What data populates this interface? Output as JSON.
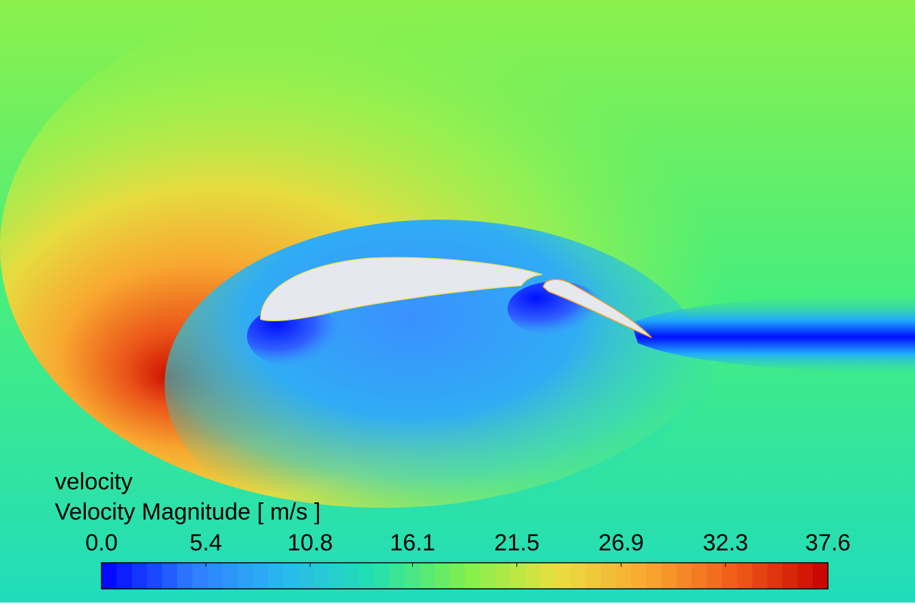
{
  "legend": {
    "variable": "velocity",
    "title": "Velocity Magnitude [ m/s ]",
    "range": [
      0,
      37.6
    ],
    "ticks": [
      {
        "value": 0,
        "label": "0.0"
      },
      5.4,
      10.8,
      16.1,
      21.5,
      26.9,
      32.3,
      37.6
    ],
    "colormap": [
      "#0000ff",
      "#2f7cff",
      "#2ab8f0",
      "#22e0b0",
      "#7ff04c",
      "#e8e040",
      "#f8a830",
      "#ef5a18",
      "#c80000"
    ]
  }
}
